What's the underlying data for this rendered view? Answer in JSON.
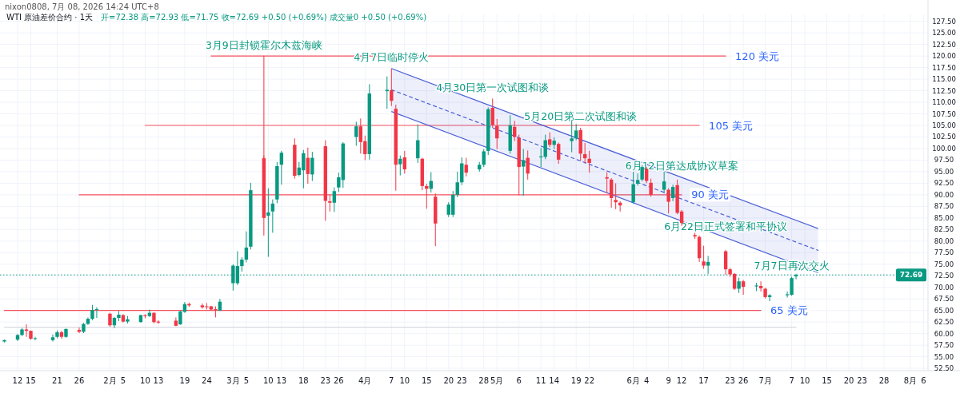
{
  "chart_data": {
    "type": "candlestick",
    "title": "WTI 原油差价合约 · 1天",
    "subtitle": "开=72.38 高=72.93 低=71.75 收=72.69 +0.50 (+0.69%) 成交量0 +0.50 (+0.69%)",
    "annotations": [
      "nixon0808, 7月 08, 2026 14:24 UTC+8",
      {
        "text": "3月9日封锁霍尔木兹海峡",
        "x": "2026-03-09",
        "y": 120
      },
      {
        "text": "4月7日临时停火",
        "x": "2026-04-07",
        "y": 117.3
      },
      {
        "text": "4月30日第一次试图和谈",
        "x": "2026-04-30",
        "y": 110.8
      },
      {
        "text": "5月20日第二次试图和谈",
        "x": "2026-05-20",
        "y": 104.5
      },
      {
        "text": "6月12日第达成协议草案",
        "x": "2026-06-12",
        "y": 93.8
      },
      {
        "text": "6月22日正式签署和平协议",
        "x": "2026-06-22",
        "y": 80.7
      },
      {
        "text": "7月7日再次交火",
        "x": "2026-07-07",
        "y": 72.3
      }
    ],
    "x": [
      "2026-01-09",
      "2026-01-12",
      "2026-01-13",
      "2026-01-14",
      "2026-01-15",
      "2026-01-16",
      "2026-01-20",
      "2026-01-21",
      "2026-01-22",
      "2026-01-23",
      "2026-01-26",
      "2026-01-27",
      "2026-01-28",
      "2026-01-29",
      "2026-01-30",
      "2026-02-02",
      "2026-02-03",
      "2026-02-04",
      "2026-02-05",
      "2026-02-06",
      "2026-02-09",
      "2026-02-10",
      "2026-02-11",
      "2026-02-12",
      "2026-02-13",
      "2026-02-17",
      "2026-02-18",
      "2026-02-19",
      "2026-02-20",
      "2026-02-23",
      "2026-02-24",
      "2026-02-25",
      "2026-02-26",
      "2026-02-27",
      "2026-03-02",
      "2026-03-03",
      "2026-03-04",
      "2026-03-05",
      "2026-03-06",
      "2026-03-09",
      "2026-03-10",
      "2026-03-11",
      "2026-03-12",
      "2026-03-13",
      "2026-03-16",
      "2026-03-17",
      "2026-03-18",
      "2026-03-19",
      "2026-03-20",
      "2026-03-23",
      "2026-03-24",
      "2026-03-25",
      "2026-03-26",
      "2026-03-27",
      "2026-03-30",
      "2026-03-31",
      "2026-04-01",
      "2026-04-02",
      "2026-04-06",
      "2026-04-07",
      "2026-04-08",
      "2026-04-09",
      "2026-04-10",
      "2026-04-13",
      "2026-04-14",
      "2026-04-15",
      "2026-04-16",
      "2026-04-17",
      "2026-04-20",
      "2026-04-21",
      "2026-04-22",
      "2026-04-23",
      "2026-04-24",
      "2026-04-27",
      "2026-04-28",
      "2026-04-29",
      "2026-04-30",
      "2026-05-01",
      "2026-05-04",
      "2026-05-05",
      "2026-05-06",
      "2026-05-07",
      "2026-05-08",
      "2026-05-11",
      "2026-05-12",
      "2026-05-13",
      "2026-05-14",
      "2026-05-15",
      "2026-05-18",
      "2026-05-19",
      "2026-05-20",
      "2026-05-21",
      "2026-05-22",
      "2026-05-26",
      "2026-05-27",
      "2026-05-28",
      "2026-05-29",
      "2026-06-01",
      "2026-06-02",
      "2026-06-03",
      "2026-06-04",
      "2026-06-05",
      "2026-06-08",
      "2026-06-09",
      "2026-06-10",
      "2026-06-11",
      "2026-06-12",
      "2026-06-15",
      "2026-06-16",
      "2026-06-17",
      "2026-06-18",
      "2026-06-22",
      "2026-06-23",
      "2026-06-24",
      "2026-06-25",
      "2026-06-26",
      "2026-06-29",
      "2026-06-30",
      "2026-07-01",
      "2026-07-02",
      "2026-07-06",
      "2026-07-07",
      "2026-07-08"
    ],
    "ohlc": [
      [
        58.3,
        58.7,
        58.1,
        58.6
      ],
      [
        58.7,
        59.9,
        58.4,
        59.7
      ],
      [
        59.7,
        61.2,
        59.5,
        60.9
      ],
      [
        60.9,
        62.0,
        59.3,
        60.6
      ],
      [
        60.6,
        60.7,
        58.7,
        58.9
      ],
      [
        58.9,
        59.3,
        58.6,
        59.0
      ],
      [
        58.6,
        59.8,
        58.3,
        59.2
      ],
      [
        59.3,
        60.7,
        59.0,
        60.3
      ],
      [
        60.3,
        60.6,
        58.9,
        59.3
      ],
      [
        59.3,
        61.1,
        59.1,
        61.0
      ],
      [
        60.8,
        61.3,
        60.1,
        60.4
      ],
      [
        60.4,
        62.3,
        60.1,
        62.1
      ],
      [
        62.1,
        63.5,
        61.9,
        63.2
      ],
      [
        63.2,
        66.2,
        62.9,
        65.1
      ],
      [
        65.2,
        65.7,
        63.4,
        65.3
      ],
      [
        64.3,
        64.5,
        61.5,
        61.8
      ],
      [
        61.8,
        63.6,
        61.2,
        63.4
      ],
      [
        63.4,
        64.9,
        62.7,
        64.1
      ],
      [
        64.0,
        64.2,
        62.4,
        62.6
      ],
      [
        62.6,
        63.8,
        62.2,
        63.1
      ],
      [
        62.5,
        64.1,
        62.4,
        64.0
      ],
      [
        64.0,
        64.2,
        63.3,
        63.8
      ],
      [
        63.8,
        65.2,
        63.6,
        64.5
      ],
      [
        64.5,
        64.6,
        62.2,
        62.5
      ],
      [
        62.6,
        62.9,
        62.1,
        62.4
      ],
      [
        62.8,
        63.5,
        61.6,
        61.7
      ],
      [
        62.0,
        64.9,
        61.9,
        64.8
      ],
      [
        64.7,
        66.8,
        64.5,
        66.4
      ],
      [
        66.4,
        66.7,
        65.8,
        66.1
      ],
      [
        66.1,
        66.5,
        65.4,
        65.7
      ],
      [
        65.9,
        66.6,
        65.2,
        65.8
      ],
      [
        65.9,
        66.0,
        65.0,
        65.2
      ],
      [
        65.3,
        65.9,
        63.5,
        65.2
      ],
      [
        65.0,
        67.5,
        64.9,
        66.9
      ],
      [
        70.9,
        75.0,
        69.3,
        74.7
      ],
      [
        70.9,
        77.8,
        70.5,
        74.6
      ],
      [
        74.6,
        76.5,
        73.4,
        76.0
      ],
      [
        76.0,
        82.1,
        75.4,
        78.6
      ],
      [
        78.8,
        92.6,
        78.2,
        91.0
      ],
      [
        97.9,
        98.5,
        81.2,
        85.0
      ],
      [
        85.5,
        91.4,
        76.6,
        86.2
      ],
      [
        86.4,
        89.0,
        81.8,
        88.1
      ],
      [
        89.0,
        97.1,
        88.2,
        96.2
      ],
      [
        96.5,
        99.5,
        92.2,
        99.1
      ],
      [
        100.8,
        102.2,
        93.5,
        94.1
      ],
      [
        94.3,
        97.1,
        94.0,
        95.9
      ],
      [
        95.3,
        99.7,
        91.4,
        99.0
      ],
      [
        98.0,
        100.2,
        92.4,
        94.5
      ],
      [
        94.4,
        99.3,
        93.0,
        98.0
      ],
      [
        100.5,
        101.8,
        84.4,
        88.7
      ],
      [
        88.6,
        90.0,
        86.4,
        88.3
      ],
      [
        88.3,
        91.6,
        86.3,
        90.8
      ],
      [
        91.6,
        94.8,
        90.6,
        93.8
      ],
      [
        93.2,
        101.4,
        91.5,
        101.1
      ],
      [
        102.5,
        105.8,
        100.6,
        104.8
      ],
      [
        104.8,
        106.5,
        98.9,
        101.4
      ],
      [
        101.6,
        102.8,
        97.5,
        98.8
      ],
      [
        98.8,
        113.9,
        97.6,
        111.9
      ],
      [
        112.4,
        115.6,
        108.6,
        112.7
      ],
      [
        112.6,
        117.3,
        109.2,
        110.3
      ],
      [
        108.6,
        109.5,
        90.9,
        96.5
      ],
      [
        96.6,
        98.5,
        94.2,
        97.8
      ],
      [
        98.1,
        99.5,
        94.6,
        95.5
      ],
      [
        97.9,
        105.2,
        96.9,
        101.8
      ],
      [
        97.8,
        98.0,
        91.0,
        91.9
      ],
      [
        91.9,
        92.4,
        87.0,
        91.3
      ],
      [
        91.3,
        94.9,
        90.5,
        93.0
      ],
      [
        89.6,
        90.3,
        78.9,
        83.8
      ],
      [
        85.7,
        88.4,
        85.2,
        87.9
      ],
      [
        85.7,
        90.8,
        85.2,
        90.0
      ],
      [
        90.0,
        95.0,
        89.5,
        92.7
      ],
      [
        92.7,
        98.1,
        92.1,
        96.8
      ],
      [
        96.5,
        98.0,
        94.0,
        94.8
      ],
      [
        95.5,
        97.1,
        95.0,
        96.5
      ],
      [
        96.5,
        99.9,
        96.0,
        99.4
      ],
      [
        99.5,
        108.9,
        98.6,
        108.5
      ],
      [
        108.8,
        110.8,
        104.5,
        105.1
      ],
      [
        104.9,
        106.4,
        99.9,
        102.2
      ],
      [
        99.5,
        107.2,
        98.9,
        105.0
      ],
      [
        104.7,
        106.0,
        101.6,
        102.5
      ],
      [
        102.3,
        103.0,
        89.9,
        96.0
      ],
      [
        96.1,
        99.9,
        89.8,
        97.5
      ],
      [
        98.0,
        99.6,
        93.3,
        94.6
      ],
      [
        98.1,
        100.1,
        96.0,
        98.3
      ],
      [
        98.2,
        103.0,
        97.7,
        101.8
      ],
      [
        102.0,
        103.5,
        100.3,
        100.8
      ],
      [
        100.8,
        102.4,
        99.9,
        101.7
      ],
      [
        101.0,
        101.3,
        96.7,
        97.6
      ],
      [
        101.6,
        106.0,
        99.2,
        102.2
      ],
      [
        102.2,
        105.3,
        101.8,
        103.9
      ],
      [
        104.0,
        104.5,
        97.4,
        98.9
      ],
      [
        98.8,
        101.2,
        96.8,
        97.9
      ],
      [
        97.8,
        99.5,
        94.8,
        96.9
      ],
      [
        93.8,
        94.9,
        90.3,
        93.5
      ],
      [
        93.3,
        93.6,
        87.2,
        89.3
      ],
      [
        88.9,
        92.5,
        86.9,
        88.4
      ],
      [
        88.3,
        88.6,
        86.4,
        87.7
      ],
      [
        88.4,
        95.0,
        88.1,
        92.3
      ],
      [
        92.4,
        94.6,
        92.0,
        93.2
      ],
      [
        93.3,
        96.4,
        92.9,
        96.0
      ],
      [
        95.6,
        96.0,
        92.5,
        93.0
      ],
      [
        92.6,
        93.5,
        89.6,
        90.0
      ],
      [
        91.1,
        95.0,
        90.3,
        92.9
      ],
      [
        91.1,
        91.4,
        86.0,
        88.5
      ],
      [
        89.3,
        92.2,
        88.6,
        91.7
      ],
      [
        92.1,
        93.3,
        85.8,
        86.1
      ],
      [
        86.4,
        86.7,
        83.3,
        83.9
      ],
      [
        81.3,
        81.8,
        80.5,
        81.0
      ],
      [
        80.9,
        81.2,
        75.5,
        76.3
      ],
      [
        75.6,
        79.0,
        74.0,
        74.7
      ],
      [
        74.7,
        76.8,
        72.9,
        75.5
      ],
      [
        77.8,
        78.1,
        72.7,
        73.9
      ],
      [
        73.9,
        74.2,
        72.3,
        72.8
      ],
      [
        72.9,
        73.1,
        69.4,
        69.7
      ],
      [
        69.7,
        72.1,
        68.8,
        71.3
      ],
      [
        71.3,
        71.6,
        68.4,
        70.1
      ],
      [
        70.2,
        71.0,
        69.2,
        70.4
      ],
      [
        70.3,
        71.3,
        69.1,
        69.8
      ],
      [
        69.7,
        69.9,
        67.6,
        67.9
      ],
      [
        67.9,
        68.5,
        67.0,
        68.3
      ],
      [
        68.3,
        69.1,
        67.8,
        68.5
      ],
      [
        68.4,
        72.3,
        68.2,
        72.0
      ],
      [
        72.38,
        72.93,
        71.75,
        72.69
      ]
    ],
    "series": [
      {
        "type": "line",
        "name": "120 美元",
        "color": "#f7525f",
        "x": [
          "2026-02-25",
          "2026-06-22"
        ],
        "values": [
          120,
          120
        ]
      },
      {
        "type": "line",
        "name": "105 美元",
        "color": "#f7525f",
        "x": [
          "2026-02-10",
          "2026-06-16"
        ],
        "values": [
          105,
          105
        ]
      },
      {
        "type": "line",
        "name": "90 美元",
        "color": "#f7525f",
        "x": [
          "2026-01-26",
          "2026-06-12"
        ],
        "values": [
          90,
          90
        ]
      },
      {
        "type": "line",
        "name": "65 美元",
        "color": "#f7525f",
        "x": [
          "2026-01-09",
          "2026-06-30"
        ],
        "values": [
          65,
          65
        ]
      },
      {
        "type": "line",
        "color": "#f7525f",
        "x": [
          "2026-03-09",
          "2026-03-09"
        ],
        "values": [
          120,
          98
        ]
      },
      {
        "type": "line",
        "color": "#d6d9e0",
        "x": [
          "2026-01-09",
          "2026-07-08"
        ],
        "values": [
          61.4,
          61.4
        ]
      },
      {
        "type": "line",
        "color": "#4a5fd6",
        "line_style": "dashed",
        "x": [
          "2026-04-07",
          "2026-07-13"
        ],
        "values": [
          112.7,
          78.0
        ],
        "lower": [
          108.0,
          73.2
        ],
        "upper": [
          117.3,
          82.7
        ]
      }
    ],
    "ref_lines": [
      {
        "axis": "y",
        "value": 72.69,
        "label": "72.69",
        "color": "#089981",
        "line_style": "dotted"
      }
    ],
    "xlim": [
      "2026-01-08",
      "2026-08-07"
    ],
    "xticks": [
      {
        "value": "2026-01-12",
        "label": "12"
      },
      {
        "value": "2026-01-15",
        "label": "15"
      },
      {
        "value": "2026-01-21",
        "label": "21"
      },
      {
        "value": "2026-01-26",
        "label": "26"
      },
      {
        "value": "2026-02-02",
        "label": "2月"
      },
      {
        "value": "2026-02-05",
        "label": "5"
      },
      {
        "value": "2026-02-10",
        "label": "10"
      },
      {
        "value": "2026-02-13",
        "label": "13"
      },
      {
        "value": "2026-02-19",
        "label": "19"
      },
      {
        "value": "2026-02-24",
        "label": "24"
      },
      {
        "value": "2026-03-02",
        "label": "3月"
      },
      {
        "value": "2026-03-05",
        "label": "5"
      },
      {
        "value": "2026-03-10",
        "label": "10"
      },
      {
        "value": "2026-03-13",
        "label": "13"
      },
      {
        "value": "2026-03-18",
        "label": "18"
      },
      {
        "value": "2026-03-23",
        "label": "23"
      },
      {
        "value": "2026-03-26",
        "label": "26"
      },
      {
        "value": "2026-04-01",
        "label": "4月"
      },
      {
        "value": "2026-04-07",
        "label": "7"
      },
      {
        "value": "2026-04-10",
        "label": "10"
      },
      {
        "value": "2026-04-15",
        "label": "15"
      },
      {
        "value": "2026-04-20",
        "label": "20"
      },
      {
        "value": "2026-04-23",
        "label": "23"
      },
      {
        "value": "2026-04-28",
        "label": "28"
      },
      {
        "value": "2026-05-01",
        "label": "5月"
      },
      {
        "value": "2026-05-06",
        "label": "6"
      },
      {
        "value": "2026-05-11",
        "label": "11"
      },
      {
        "value": "2026-05-14",
        "label": "14"
      },
      {
        "value": "2026-05-19",
        "label": "19"
      },
      {
        "value": "2026-05-22",
        "label": "22"
      },
      {
        "value": "2026-06-01",
        "label": "6月"
      },
      {
        "value": "2026-06-04",
        "label": "4"
      },
      {
        "value": "2026-06-09",
        "label": "9"
      },
      {
        "value": "2026-06-12",
        "label": "12"
      },
      {
        "value": "2026-06-17",
        "label": "17"
      },
      {
        "value": "2026-06-23",
        "label": "23"
      },
      {
        "value": "2026-06-26",
        "label": "26"
      },
      {
        "value": "2026-07-01",
        "label": "7月"
      },
      {
        "value": "2026-07-07",
        "label": "7"
      },
      {
        "value": "2026-07-10",
        "label": "10"
      },
      {
        "value": "2026-07-15",
        "label": "15"
      },
      {
        "value": "2026-07-20",
        "label": "20"
      },
      {
        "value": "2026-07-23",
        "label": "23"
      },
      {
        "value": "2026-07-28",
        "label": "28"
      },
      {
        "value": "2026-08-03",
        "label": "8月"
      },
      {
        "value": "2026-08-06",
        "label": "6"
      }
    ],
    "ylim": [
      52,
      129
    ],
    "yticks": [
      {
        "value": 52.5,
        "label": "52.50"
      },
      {
        "value": 55,
        "label": "55.00"
      },
      {
        "value": 57.5,
        "label": "57.50"
      },
      {
        "value": 60,
        "label": "60.00"
      },
      {
        "value": 62.5,
        "label": "62.50"
      },
      {
        "value": 65,
        "label": "65.00"
      },
      {
        "value": 67.5,
        "label": "67.50"
      },
      {
        "value": 70,
        "label": "70.00"
      },
      {
        "value": 72.5,
        "label": "72.50"
      },
      {
        "value": 75,
        "label": "75.00"
      },
      {
        "value": 77.5,
        "label": "77.50"
      },
      {
        "value": 80,
        "label": "80.00"
      },
      {
        "value": 82.5,
        "label": "82.50"
      },
      {
        "value": 85,
        "label": "85.00"
      },
      {
        "value": 87.5,
        "label": "87.50"
      },
      {
        "value": 90,
        "label": "90.00"
      },
      {
        "value": 92.5,
        "label": "92.50"
      },
      {
        "value": 95,
        "label": "95.00"
      },
      {
        "value": 97.5,
        "label": "97.50"
      },
      {
        "value": 100,
        "label": "100.00"
      },
      {
        "value": 102.5,
        "label": "102.50"
      },
      {
        "value": 105,
        "label": "105.00"
      },
      {
        "value": 107.5,
        "label": "107.50"
      },
      {
        "value": 110,
        "label": "110.00"
      },
      {
        "value": 112.5,
        "label": "112.50"
      },
      {
        "value": 115,
        "label": "115.00"
      },
      {
        "value": 117.5,
        "label": "117.50"
      },
      {
        "value": 120,
        "label": "120.00"
      },
      {
        "value": 122.5,
        "label": "122.50"
      },
      {
        "value": 125,
        "label": "125.00"
      },
      {
        "value": 127.5,
        "label": "127.50"
      }
    ],
    "grid": true
  }
}
